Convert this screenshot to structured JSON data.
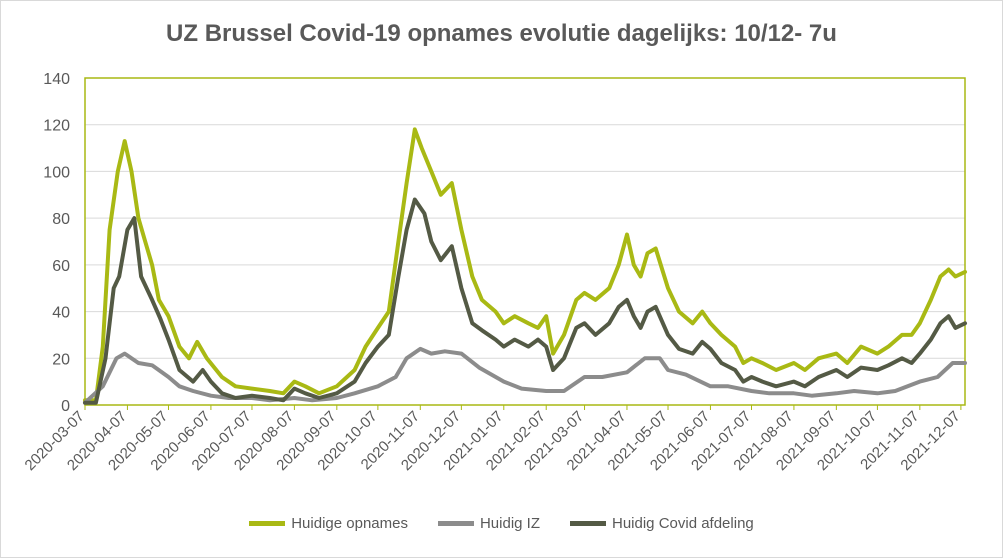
{
  "chart_data": {
    "type": "line",
    "title": "UZ Brussel Covid-19 opnames evolutie dagelijks: 10/12- 7u",
    "xlabel": "",
    "ylabel": "",
    "ylim": [
      0,
      140
    ],
    "yticks": [
      0,
      20,
      40,
      60,
      80,
      100,
      120,
      140
    ],
    "grid": true,
    "legend_position": "bottom",
    "x_ticks": [
      "2020-03-07",
      "2020-04-07",
      "2020-05-07",
      "2020-06-07",
      "2020-07-07",
      "2020-08-07",
      "2020-09-07",
      "2020-10-07",
      "2020-11-07",
      "2020-12-07",
      "2021-01-07",
      "2021-02-07",
      "2021-03-07",
      "2021-04-07",
      "2021-05-07",
      "2021-06-07",
      "2021-07-07",
      "2021-08-07",
      "2021-09-07",
      "2021-10-07",
      "2021-11-07",
      "2021-12-07"
    ],
    "x_range": [
      "2020-03-07",
      "2021-12-10"
    ],
    "series": [
      {
        "name": "Huidige opnames",
        "color": "#a9b914",
        "points": [
          [
            "2020-03-07",
            2
          ],
          [
            "2020-03-15",
            2
          ],
          [
            "2020-03-20",
            25
          ],
          [
            "2020-03-25",
            75
          ],
          [
            "2020-03-31",
            100
          ],
          [
            "2020-04-05",
            113
          ],
          [
            "2020-04-10",
            100
          ],
          [
            "2020-04-15",
            80
          ],
          [
            "2020-04-20",
            70
          ],
          [
            "2020-04-25",
            60
          ],
          [
            "2020-04-30",
            45
          ],
          [
            "2020-05-07",
            38
          ],
          [
            "2020-05-15",
            25
          ],
          [
            "2020-05-22",
            20
          ],
          [
            "2020-05-28",
            27
          ],
          [
            "2020-06-04",
            20
          ],
          [
            "2020-06-15",
            12
          ],
          [
            "2020-06-25",
            8
          ],
          [
            "2020-07-07",
            7
          ],
          [
            "2020-07-20",
            6
          ],
          [
            "2020-07-30",
            5
          ],
          [
            "2020-08-07",
            10
          ],
          [
            "2020-08-15",
            8
          ],
          [
            "2020-08-25",
            5
          ],
          [
            "2020-09-07",
            8
          ],
          [
            "2020-09-20",
            15
          ],
          [
            "2020-09-28",
            25
          ],
          [
            "2020-10-07",
            33
          ],
          [
            "2020-10-15",
            40
          ],
          [
            "2020-10-22",
            70
          ],
          [
            "2020-10-28",
            95
          ],
          [
            "2020-11-03",
            118
          ],
          [
            "2020-11-08",
            110
          ],
          [
            "2020-11-15",
            100
          ],
          [
            "2020-11-22",
            90
          ],
          [
            "2020-11-30",
            95
          ],
          [
            "2020-12-07",
            75
          ],
          [
            "2020-12-15",
            55
          ],
          [
            "2020-12-22",
            45
          ],
          [
            "2021-01-01",
            40
          ],
          [
            "2021-01-07",
            35
          ],
          [
            "2021-01-15",
            38
          ],
          [
            "2021-01-25",
            35
          ],
          [
            "2021-02-01",
            33
          ],
          [
            "2021-02-07",
            38
          ],
          [
            "2021-02-12",
            22
          ],
          [
            "2021-02-20",
            30
          ],
          [
            "2021-03-01",
            45
          ],
          [
            "2021-03-07",
            48
          ],
          [
            "2021-03-15",
            45
          ],
          [
            "2021-03-25",
            50
          ],
          [
            "2021-04-01",
            60
          ],
          [
            "2021-04-07",
            73
          ],
          [
            "2021-04-12",
            60
          ],
          [
            "2021-04-17",
            55
          ],
          [
            "2021-04-22",
            65
          ],
          [
            "2021-04-28",
            67
          ],
          [
            "2021-05-07",
            50
          ],
          [
            "2021-05-15",
            40
          ],
          [
            "2021-05-25",
            35
          ],
          [
            "2021-06-01",
            40
          ],
          [
            "2021-06-07",
            35
          ],
          [
            "2021-06-15",
            30
          ],
          [
            "2021-06-25",
            25
          ],
          [
            "2021-07-01",
            18
          ],
          [
            "2021-07-07",
            20
          ],
          [
            "2021-07-15",
            18
          ],
          [
            "2021-07-25",
            15
          ],
          [
            "2021-08-07",
            18
          ],
          [
            "2021-08-15",
            15
          ],
          [
            "2021-08-25",
            20
          ],
          [
            "2021-09-07",
            22
          ],
          [
            "2021-09-15",
            18
          ],
          [
            "2021-09-25",
            25
          ],
          [
            "2021-10-07",
            22
          ],
          [
            "2021-10-15",
            25
          ],
          [
            "2021-10-25",
            30
          ],
          [
            "2021-11-01",
            30
          ],
          [
            "2021-11-07",
            35
          ],
          [
            "2021-11-15",
            45
          ],
          [
            "2021-11-22",
            55
          ],
          [
            "2021-11-28",
            58
          ],
          [
            "2021-12-03",
            55
          ],
          [
            "2021-12-10",
            57
          ]
        ]
      },
      {
        "name": "Huidig IZ",
        "color": "#8c8c8c",
        "points": [
          [
            "2020-03-07",
            1
          ],
          [
            "2020-03-20",
            8
          ],
          [
            "2020-03-30",
            20
          ],
          [
            "2020-04-05",
            22
          ],
          [
            "2020-04-15",
            18
          ],
          [
            "2020-04-25",
            17
          ],
          [
            "2020-05-07",
            12
          ],
          [
            "2020-05-15",
            8
          ],
          [
            "2020-05-25",
            6
          ],
          [
            "2020-06-07",
            4
          ],
          [
            "2020-06-20",
            3
          ],
          [
            "2020-07-07",
            3
          ],
          [
            "2020-07-20",
            2
          ],
          [
            "2020-08-07",
            3
          ],
          [
            "2020-08-20",
            2
          ],
          [
            "2020-09-07",
            3
          ],
          [
            "2020-09-20",
            5
          ],
          [
            "2020-10-07",
            8
          ],
          [
            "2020-10-20",
            12
          ],
          [
            "2020-10-28",
            20
          ],
          [
            "2020-11-07",
            24
          ],
          [
            "2020-11-15",
            22
          ],
          [
            "2020-11-25",
            23
          ],
          [
            "2020-12-07",
            22
          ],
          [
            "2020-12-20",
            16
          ],
          [
            "2021-01-07",
            10
          ],
          [
            "2021-01-20",
            7
          ],
          [
            "2021-02-07",
            6
          ],
          [
            "2021-02-20",
            6
          ],
          [
            "2021-03-07",
            12
          ],
          [
            "2021-03-20",
            12
          ],
          [
            "2021-04-07",
            14
          ],
          [
            "2021-04-20",
            20
          ],
          [
            "2021-05-01",
            20
          ],
          [
            "2021-05-07",
            15
          ],
          [
            "2021-05-20",
            13
          ],
          [
            "2021-06-07",
            8
          ],
          [
            "2021-06-20",
            8
          ],
          [
            "2021-07-07",
            6
          ],
          [
            "2021-07-20",
            5
          ],
          [
            "2021-08-07",
            5
          ],
          [
            "2021-08-20",
            4
          ],
          [
            "2021-09-07",
            5
          ],
          [
            "2021-09-20",
            6
          ],
          [
            "2021-10-07",
            5
          ],
          [
            "2021-10-20",
            6
          ],
          [
            "2021-11-07",
            10
          ],
          [
            "2021-11-20",
            12
          ],
          [
            "2021-12-01",
            18
          ],
          [
            "2021-12-10",
            18
          ]
        ]
      },
      {
        "name": "Huidig Covid afdeling",
        "color": "#545a45",
        "points": [
          [
            "2020-03-07",
            1
          ],
          [
            "2020-03-15",
            1
          ],
          [
            "2020-03-22",
            20
          ],
          [
            "2020-03-28",
            50
          ],
          [
            "2020-04-01",
            55
          ],
          [
            "2020-04-07",
            75
          ],
          [
            "2020-04-12",
            80
          ],
          [
            "2020-04-17",
            55
          ],
          [
            "2020-04-25",
            45
          ],
          [
            "2020-05-01",
            37
          ],
          [
            "2020-05-07",
            28
          ],
          [
            "2020-05-15",
            15
          ],
          [
            "2020-05-25",
            10
          ],
          [
            "2020-06-01",
            15
          ],
          [
            "2020-06-07",
            10
          ],
          [
            "2020-06-15",
            5
          ],
          [
            "2020-06-25",
            3
          ],
          [
            "2020-07-07",
            4
          ],
          [
            "2020-07-20",
            3
          ],
          [
            "2020-07-30",
            2
          ],
          [
            "2020-08-07",
            7
          ],
          [
            "2020-08-15",
            5
          ],
          [
            "2020-08-25",
            3
          ],
          [
            "2020-09-07",
            5
          ],
          [
            "2020-09-20",
            10
          ],
          [
            "2020-09-28",
            18
          ],
          [
            "2020-10-07",
            25
          ],
          [
            "2020-10-15",
            30
          ],
          [
            "2020-10-22",
            55
          ],
          [
            "2020-10-28",
            75
          ],
          [
            "2020-11-03",
            88
          ],
          [
            "2020-11-10",
            82
          ],
          [
            "2020-11-15",
            70
          ],
          [
            "2020-11-22",
            62
          ],
          [
            "2020-11-30",
            68
          ],
          [
            "2020-12-07",
            50
          ],
          [
            "2020-12-15",
            35
          ],
          [
            "2020-12-22",
            32
          ],
          [
            "2021-01-01",
            28
          ],
          [
            "2021-01-07",
            25
          ],
          [
            "2021-01-15",
            28
          ],
          [
            "2021-01-25",
            25
          ],
          [
            "2021-02-01",
            28
          ],
          [
            "2021-02-07",
            25
          ],
          [
            "2021-02-12",
            15
          ],
          [
            "2021-02-20",
            20
          ],
          [
            "2021-03-01",
            33
          ],
          [
            "2021-03-07",
            35
          ],
          [
            "2021-03-15",
            30
          ],
          [
            "2021-03-25",
            35
          ],
          [
            "2021-04-01",
            42
          ],
          [
            "2021-04-07",
            45
          ],
          [
            "2021-04-12",
            38
          ],
          [
            "2021-04-17",
            33
          ],
          [
            "2021-04-22",
            40
          ],
          [
            "2021-04-28",
            42
          ],
          [
            "2021-05-07",
            30
          ],
          [
            "2021-05-15",
            24
          ],
          [
            "2021-05-25",
            22
          ],
          [
            "2021-06-01",
            27
          ],
          [
            "2021-06-07",
            24
          ],
          [
            "2021-06-15",
            18
          ],
          [
            "2021-06-25",
            15
          ],
          [
            "2021-07-01",
            10
          ],
          [
            "2021-07-07",
            12
          ],
          [
            "2021-07-15",
            10
          ],
          [
            "2021-07-25",
            8
          ],
          [
            "2021-08-07",
            10
          ],
          [
            "2021-08-15",
            8
          ],
          [
            "2021-08-25",
            12
          ],
          [
            "2021-09-07",
            15
          ],
          [
            "2021-09-15",
            12
          ],
          [
            "2021-09-25",
            16
          ],
          [
            "2021-10-07",
            15
          ],
          [
            "2021-10-15",
            17
          ],
          [
            "2021-10-25",
            20
          ],
          [
            "2021-11-01",
            18
          ],
          [
            "2021-11-07",
            22
          ],
          [
            "2021-11-15",
            28
          ],
          [
            "2021-11-22",
            35
          ],
          [
            "2021-11-28",
            38
          ],
          [
            "2021-12-03",
            33
          ],
          [
            "2021-12-10",
            35
          ]
        ]
      }
    ]
  }
}
